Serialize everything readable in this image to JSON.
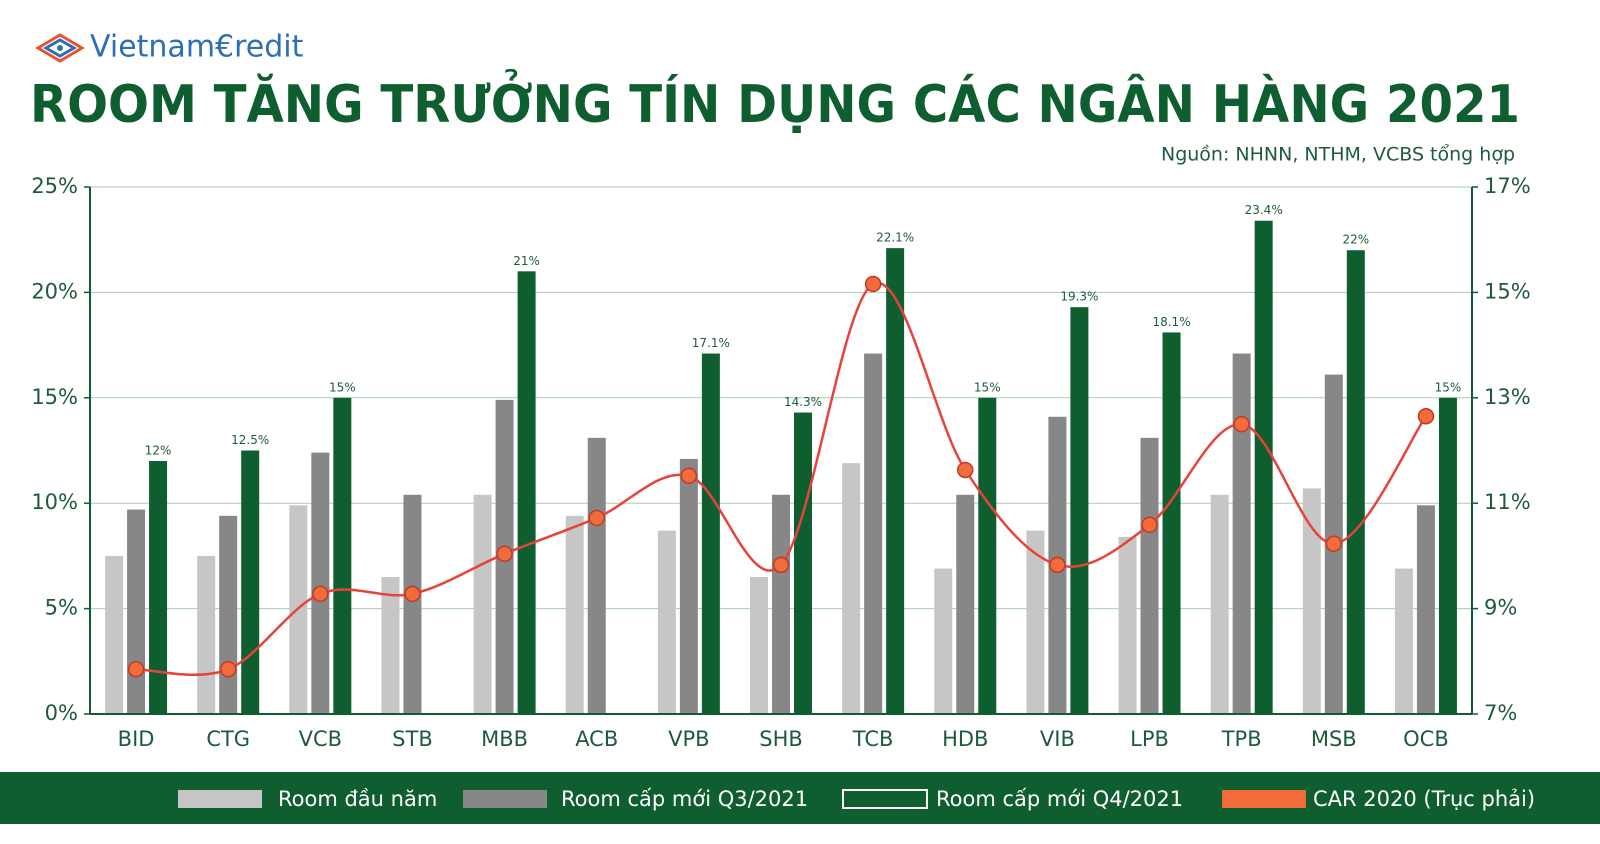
{
  "brand": "Vietnam€redit",
  "chart_data": {
    "type": "bar",
    "title": "ROOM TĂNG TRƯỞNG TÍN DỤNG CÁC NGÂN HÀNG 2021",
    "subtitle": "Nguồn: NHNN, NTHM, VCBS tổng hợp",
    "categories": [
      "BID",
      "CTG",
      "VCB",
      "STB",
      "MBB",
      "ACB",
      "VPB",
      "SHB",
      "TCB",
      "HDB",
      "VIB",
      "LPB",
      "TPB",
      "MSB",
      "OCB"
    ],
    "series": [
      {
        "name": "Room đầu năm",
        "color": "#c6c6c6",
        "values": [
          7.5,
          7.5,
          9.9,
          6.5,
          10.4,
          9.4,
          8.7,
          6.5,
          11.9,
          6.9,
          8.7,
          8.4,
          10.4,
          10.7,
          6.9
        ]
      },
      {
        "name": "Room cấp mới Q3/2021",
        "color": "#878787",
        "values": [
          9.7,
          9.4,
          12.4,
          10.4,
          14.9,
          13.1,
          12.1,
          10.4,
          17.1,
          10.4,
          14.1,
          13.1,
          17.1,
          16.1,
          9.9
        ]
      },
      {
        "name": "Room cấp mới Q4/2021",
        "color": "#0f5e30",
        "values": [
          12,
          12.5,
          15,
          null,
          21,
          null,
          17.1,
          14.3,
          22.1,
          15,
          19.3,
          18.1,
          23.4,
          22,
          15
        ],
        "value_labels": [
          "12%",
          "12.5%",
          "15%",
          null,
          "21%",
          null,
          "17.1%",
          "14.3%",
          "22.1%",
          "15%",
          "19.3%",
          "18.1%",
          "23.4%",
          "22%",
          "15%"
        ]
      },
      {
        "name": "CAR 2020 (Trục phải)",
        "color": "#e8433a",
        "type": "line",
        "axis": "y2",
        "values": [
          7.85,
          7.85,
          9.28,
          9.28,
          10.04,
          10.72,
          11.52,
          9.83,
          15.16,
          11.63,
          9.83,
          10.59,
          12.5,
          10.23,
          12.65
        ]
      }
    ],
    "ylim": [
      0,
      25
    ],
    "yticks": [
      {
        "value": 0,
        "label": "0%"
      },
      {
        "value": 5,
        "label": "5%"
      },
      {
        "value": 10,
        "label": "10%"
      },
      {
        "value": 15,
        "label": "15%"
      },
      {
        "value": 20,
        "label": "20%"
      },
      {
        "value": 25,
        "label": "25%"
      }
    ],
    "y2lim": [
      7,
      17
    ],
    "y2ticks": [
      {
        "value": 7,
        "label": "7%"
      },
      {
        "value": 9,
        "label": "9%"
      },
      {
        "value": 11,
        "label": "11%"
      },
      {
        "value": 13,
        "label": "13%"
      },
      {
        "value": 15,
        "label": "15%"
      },
      {
        "value": 17,
        "label": "17%"
      }
    ],
    "grid": true
  }
}
